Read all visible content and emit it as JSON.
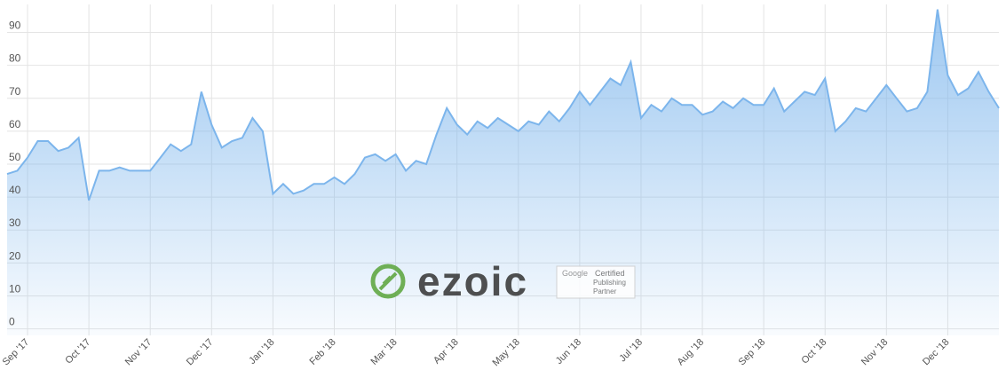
{
  "chart_data": {
    "type": "area",
    "categories": [
      null,
      null,
      "Sep '17",
      null,
      null,
      null,
      null,
      null,
      "Oct '17",
      null,
      null,
      null,
      null,
      null,
      "Nov '17",
      null,
      null,
      null,
      null,
      null,
      "Dec '17",
      null,
      null,
      null,
      null,
      null,
      "Jan '18",
      null,
      null,
      null,
      null,
      null,
      "Feb '18",
      null,
      null,
      null,
      null,
      null,
      "Mar '18",
      null,
      null,
      null,
      null,
      null,
      "Apr '18",
      null,
      null,
      null,
      null,
      null,
      "May '18",
      null,
      null,
      null,
      null,
      null,
      "Jun '18",
      null,
      null,
      null,
      null,
      null,
      "Jul '18",
      null,
      null,
      null,
      null,
      null,
      "Aug '18",
      null,
      null,
      null,
      null,
      null,
      "Sep '18",
      null,
      null,
      null,
      null,
      null,
      "Oct '18",
      null,
      null,
      null,
      null,
      null,
      "Nov '18",
      null,
      null,
      null,
      null,
      null,
      "Dec '18",
      null,
      null,
      null,
      null,
      null
    ],
    "series": [
      {
        "color": "#7cb5ec",
        "values": [
          47,
          48,
          52,
          57,
          57,
          54,
          55,
          58,
          39,
          48,
          48,
          49,
          48,
          48,
          48,
          52,
          56,
          54,
          56,
          72,
          62,
          55,
          57,
          58,
          64,
          60,
          41,
          44,
          41,
          42,
          44,
          44,
          46,
          44,
          47,
          52,
          53,
          51,
          53,
          48,
          51,
          50,
          59,
          67,
          62,
          59,
          63,
          61,
          64,
          62,
          60,
          63,
          62,
          66,
          63,
          67,
          72,
          68,
          72,
          76,
          74,
          81,
          64,
          68,
          66,
          70,
          68,
          68,
          65,
          66,
          69,
          67,
          70,
          68,
          68,
          73,
          66,
          69,
          72,
          71,
          76,
          60,
          63,
          67,
          66,
          70,
          74,
          70,
          66,
          67,
          72,
          97,
          77,
          71,
          73,
          78,
          72,
          67
        ]
      }
    ],
    "ylim": [
      -2,
      98.5
    ],
    "yticks": [
      0,
      10,
      20,
      30,
      40,
      50,
      60,
      70,
      80,
      90
    ],
    "grid": true
  },
  "watermark": {
    "brand": "ezoic",
    "badge": [
      "Google",
      "Certified",
      "Publishing",
      "Partner"
    ]
  }
}
